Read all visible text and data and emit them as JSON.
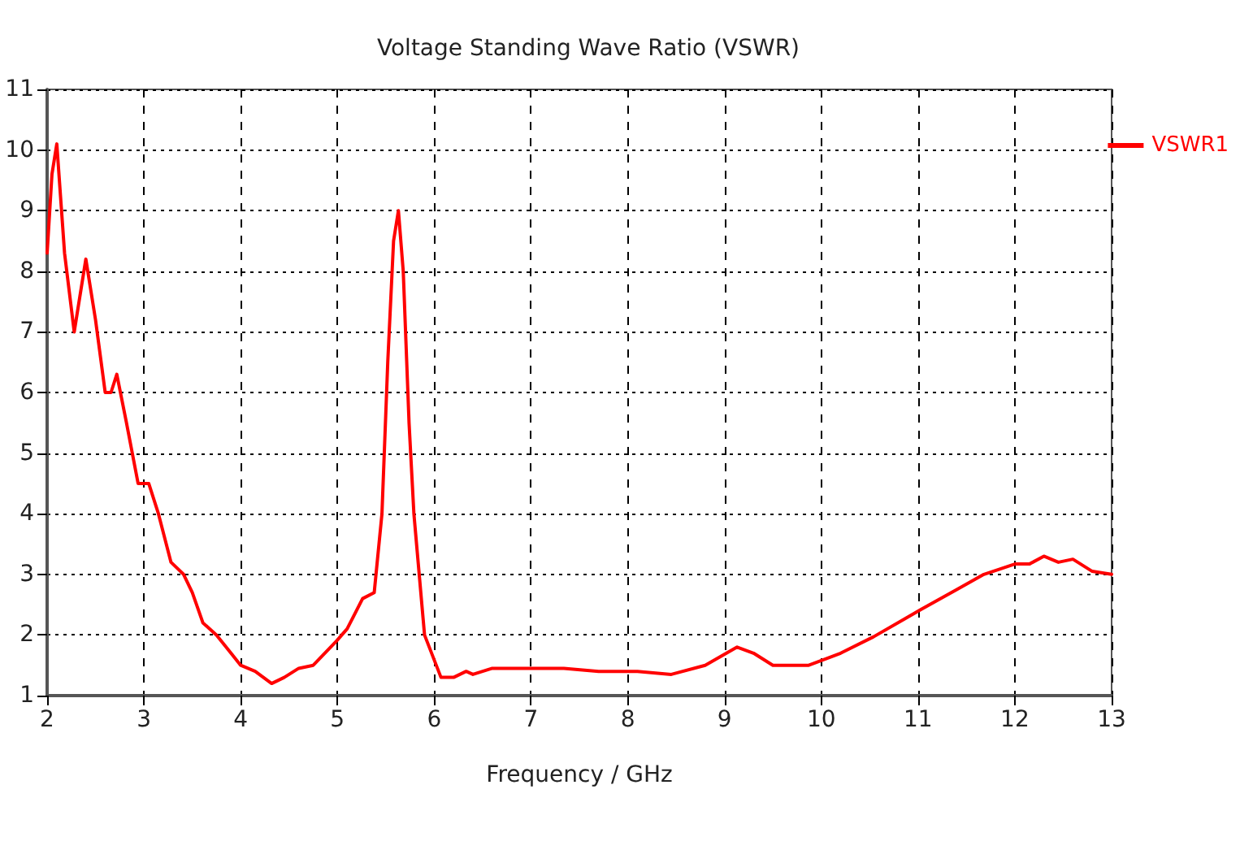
{
  "chart_data": {
    "type": "line",
    "title": "Voltage Standing Wave Ratio (VSWR)",
    "xlabel": "Frequency / GHz",
    "x": [
      2.0,
      2.05,
      2.1,
      2.18,
      2.28,
      2.4,
      2.5,
      2.6,
      2.66,
      2.72,
      2.82,
      2.94,
      3.05,
      3.15,
      3.28,
      3.41,
      3.5,
      3.61,
      3.75,
      3.9,
      4.0,
      4.15,
      4.32,
      4.45,
      4.6,
      4.75,
      4.99,
      5.1,
      5.26,
      5.38,
      5.46,
      5.52,
      5.58,
      5.63,
      5.68,
      5.74,
      5.79,
      5.9,
      6.07,
      6.2,
      6.33,
      6.4,
      6.6,
      7.0,
      7.34,
      7.7,
      8.1,
      8.45,
      8.8,
      9.13,
      9.3,
      9.5,
      9.87,
      10.2,
      10.54,
      11.03,
      11.4,
      11.68,
      12.0,
      12.15,
      12.3,
      12.45,
      12.6,
      12.8,
      13.0
    ],
    "series": [
      {
        "name": "VSWR1",
        "color": "#ff0000",
        "values": [
          8.3,
          9.6,
          10.1,
          8.3,
          7.0,
          8.2,
          7.2,
          6.0,
          6.0,
          6.3,
          5.5,
          4.5,
          4.5,
          4.0,
          3.2,
          3.0,
          2.7,
          2.2,
          2.0,
          1.7,
          1.5,
          1.4,
          1.2,
          1.3,
          1.45,
          1.5,
          1.9,
          2.1,
          2.6,
          2.7,
          4.0,
          6.5,
          8.5,
          9.0,
          8.0,
          5.5,
          4.0,
          2.0,
          1.3,
          1.3,
          1.4,
          1.35,
          1.45,
          1.45,
          1.45,
          1.4,
          1.4,
          1.35,
          1.5,
          1.8,
          1.7,
          1.5,
          1.5,
          1.7,
          1.97,
          2.42,
          2.75,
          3.0,
          3.17,
          3.17,
          3.3,
          3.2,
          3.25,
          3.05,
          3.0
        ]
      }
    ],
    "xlim": [
      2,
      13
    ],
    "xticks": [
      2,
      3,
      4,
      5,
      6,
      7,
      8,
      9,
      10,
      11,
      12,
      13
    ],
    "ylim": [
      1,
      11
    ],
    "yticks": [
      1,
      2,
      3,
      4,
      5,
      6,
      7,
      8,
      9,
      10,
      11
    ],
    "grid": true,
    "legend": "top right",
    "marker": "none",
    "line_style": "solid"
  }
}
